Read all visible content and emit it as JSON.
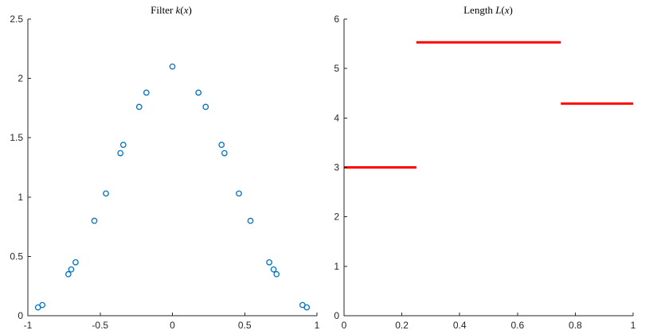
{
  "chart_data": [
    {
      "type": "scatter",
      "title_parts": [
        "Filter ",
        "k",
        "(",
        "x",
        ")"
      ],
      "xlabel": "",
      "ylabel": "",
      "xlim": [
        -1,
        1
      ],
      "ylim": [
        0,
        2.5
      ],
      "xticks": [
        -1,
        -0.5,
        0,
        0.5,
        1
      ],
      "xtick_labels": [
        "-1",
        "-0.5",
        "0",
        "0.5",
        "1"
      ],
      "yticks": [
        0,
        0.5,
        1,
        1.5,
        2,
        2.5
      ],
      "ytick_labels": [
        "0",
        "0.5",
        "1",
        "1.5",
        "2",
        "2.5"
      ],
      "grid": false,
      "marker": "circle-open",
      "color": "#0072BD",
      "series": [
        {
          "x": [
            -0.93,
            -0.9,
            -0.72,
            -0.7,
            -0.67,
            -0.54,
            -0.46,
            -0.36,
            -0.34,
            -0.23,
            -0.18,
            0.0,
            0.18,
            0.23,
            0.34,
            0.36,
            0.46,
            0.54,
            0.67,
            0.7,
            0.72,
            0.9,
            0.93
          ],
          "y": [
            0.07,
            0.09,
            0.35,
            0.39,
            0.45,
            0.8,
            1.03,
            1.37,
            1.44,
            1.76,
            1.88,
            2.1,
            1.88,
            1.76,
            1.44,
            1.37,
            1.03,
            0.8,
            0.45,
            0.39,
            0.35,
            0.09,
            0.07
          ]
        }
      ]
    },
    {
      "type": "line",
      "title_parts": [
        "Length ",
        "L",
        "(",
        "x",
        ")"
      ],
      "xlabel": "",
      "ylabel": "",
      "xlim": [
        0,
        1
      ],
      "ylim": [
        0,
        6
      ],
      "xticks": [
        0,
        0.2,
        0.4,
        0.6,
        0.8,
        1
      ],
      "xtick_labels": [
        "0",
        "0.2",
        "0.4",
        "0.6",
        "0.8",
        "1"
      ],
      "yticks": [
        0,
        1,
        2,
        3,
        4,
        5,
        6
      ],
      "ytick_labels": [
        "0",
        "1",
        "2",
        "3",
        "4",
        "5",
        "6"
      ],
      "grid": false,
      "color": "#FF0000",
      "series": [
        {
          "segments": [
            {
              "x0": 0,
              "x1": 0.25,
              "y": 3.0
            },
            {
              "x0": 0.25,
              "x1": 0.75,
              "y": 5.53
            },
            {
              "x0": 0.75,
              "x1": 1.0,
              "y": 4.29
            }
          ]
        }
      ]
    }
  ]
}
